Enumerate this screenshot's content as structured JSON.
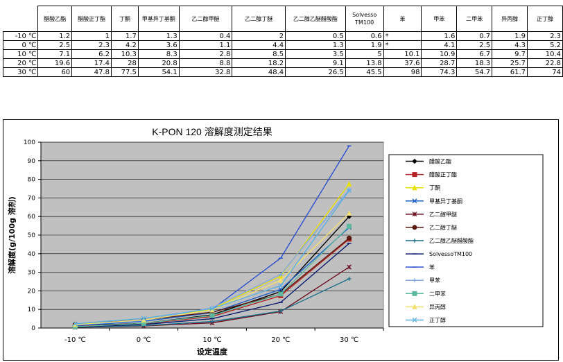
{
  "table": {
    "columns": [
      "醋酸乙酯",
      "醋酸正丁酯",
      "丁酮",
      "甲基异丁基酮",
      "乙二醇甲醚",
      "乙二醇丁醚",
      "乙二醇乙醚醋酸酯",
      "Solvesso TM100",
      "苯",
      "甲苯",
      "二甲苯",
      "异丙醇",
      "正丁醇"
    ],
    "rows": [
      {
        "label": "-10 ℃",
        "cells": [
          "1.2",
          "1",
          "1.7",
          "1.3",
          "0.4",
          "2",
          "0.5",
          "0.6",
          "*",
          "1.6",
          "0.7",
          "1.9",
          "2.3"
        ]
      },
      {
        "label": "0 ℃",
        "cells": [
          "2.5",
          "2.3",
          "4.2",
          "3.6",
          "1.1",
          "4.4",
          "1.3",
          "1.9",
          "*",
          "4.1",
          "2.5",
          "4.3",
          "5.2"
        ]
      },
      {
        "label": "10 ℃",
        "cells": [
          "7.1",
          "6.2",
          "10.3",
          "8.3",
          "2.8",
          "8.5",
          "3.5",
          "5",
          "10.1",
          "10.9",
          "6.7",
          "9.7",
          "10.4"
        ]
      },
      {
        "label": "20 ℃",
        "cells": [
          "19.6",
          "17.4",
          "28",
          "20.8",
          "8.8",
          "18.2",
          "9.1",
          "13.8",
          "37.6",
          "28.7",
          "18.3",
          "25.7",
          "22.8"
        ]
      },
      {
        "label": "30 ℃",
        "cells": [
          "60",
          "47.8",
          "77.5",
          "54.1",
          "32.8",
          "48.4",
          "26.5",
          "45.5",
          "98",
          "74.3",
          "54.7",
          "61.7",
          "74"
        ]
      }
    ]
  },
  "chart_data": {
    "type": "line",
    "title": "K-PON 120  溶解度测定结果",
    "xlabel": "设定温度",
    "ylabel": "溶解度(g/100g 溶剂)",
    "categories": [
      "-10 ℃",
      "0 ℃",
      "10 ℃",
      "20 ℃",
      "30 ℃"
    ],
    "ylim": [
      0,
      100
    ],
    "yticks": [
      "0",
      "10",
      "20",
      "30",
      "40",
      "50",
      "60",
      "70",
      "80",
      "90",
      "100"
    ],
    "grid": true,
    "legend_position": "right",
    "plot_background": "#c0c0c0",
    "series": [
      {
        "name": "醋酸乙酯",
        "color": "#000000",
        "marker": "diamond",
        "values": [
          1.2,
          2.5,
          7.1,
          19.6,
          60
        ]
      },
      {
        "name": "醋酸正丁酯",
        "color": "#b22222",
        "marker": "square",
        "values": [
          1,
          2.3,
          6.2,
          17.4,
          47.8
        ]
      },
      {
        "name": "丁酮",
        "color": "#e8e000",
        "marker": "triangle",
        "values": [
          1.7,
          4.2,
          10.3,
          28,
          77.5
        ]
      },
      {
        "name": "甲基异丁基酮",
        "color": "#1e5fc8",
        "marker": "x",
        "values": [
          1.3,
          3.6,
          8.3,
          20.8,
          54.1
        ]
      },
      {
        "name": "乙二醇甲醚",
        "color": "#6b1020",
        "marker": "asterisk",
        "values": [
          0.4,
          1.1,
          2.8,
          8.8,
          32.8
        ]
      },
      {
        "name": "乙二醇丁醚",
        "color": "#5a1a10",
        "marker": "circle",
        "values": [
          2,
          4.4,
          8.5,
          18.2,
          48.4
        ]
      },
      {
        "name": "乙二醇乙醚醋酸酯",
        "color": "#1f6f8b",
        "marker": "plus",
        "values": [
          0.5,
          1.3,
          3.5,
          9.1,
          26.5
        ]
      },
      {
        "name": "SolvessoTM100",
        "color": "#0a1a6e",
        "marker": "dash",
        "values": [
          0.6,
          1.9,
          5,
          13.8,
          45.5
        ]
      },
      {
        "name": "苯",
        "color": "#2a4fd0",
        "marker": "dash",
        "values": [
          null,
          null,
          10.1,
          37.6,
          98
        ]
      },
      {
        "name": "甲苯",
        "color": "#7fa8e8",
        "marker": "plus",
        "values": [
          1.6,
          4.1,
          10.9,
          28.7,
          74.3
        ]
      },
      {
        "name": "二甲苯",
        "color": "#5fb8a0",
        "marker": "square",
        "values": [
          0.7,
          2.5,
          6.7,
          18.3,
          54.7
        ]
      },
      {
        "name": "异丙醇",
        "color": "#f0e070",
        "marker": "triangle",
        "values": [
          1.9,
          4.3,
          9.7,
          25.7,
          61.7
        ]
      },
      {
        "name": "正丁醇",
        "color": "#5ab0e0",
        "marker": "x",
        "values": [
          2.3,
          5.2,
          10.4,
          22.8,
          74
        ]
      }
    ]
  }
}
